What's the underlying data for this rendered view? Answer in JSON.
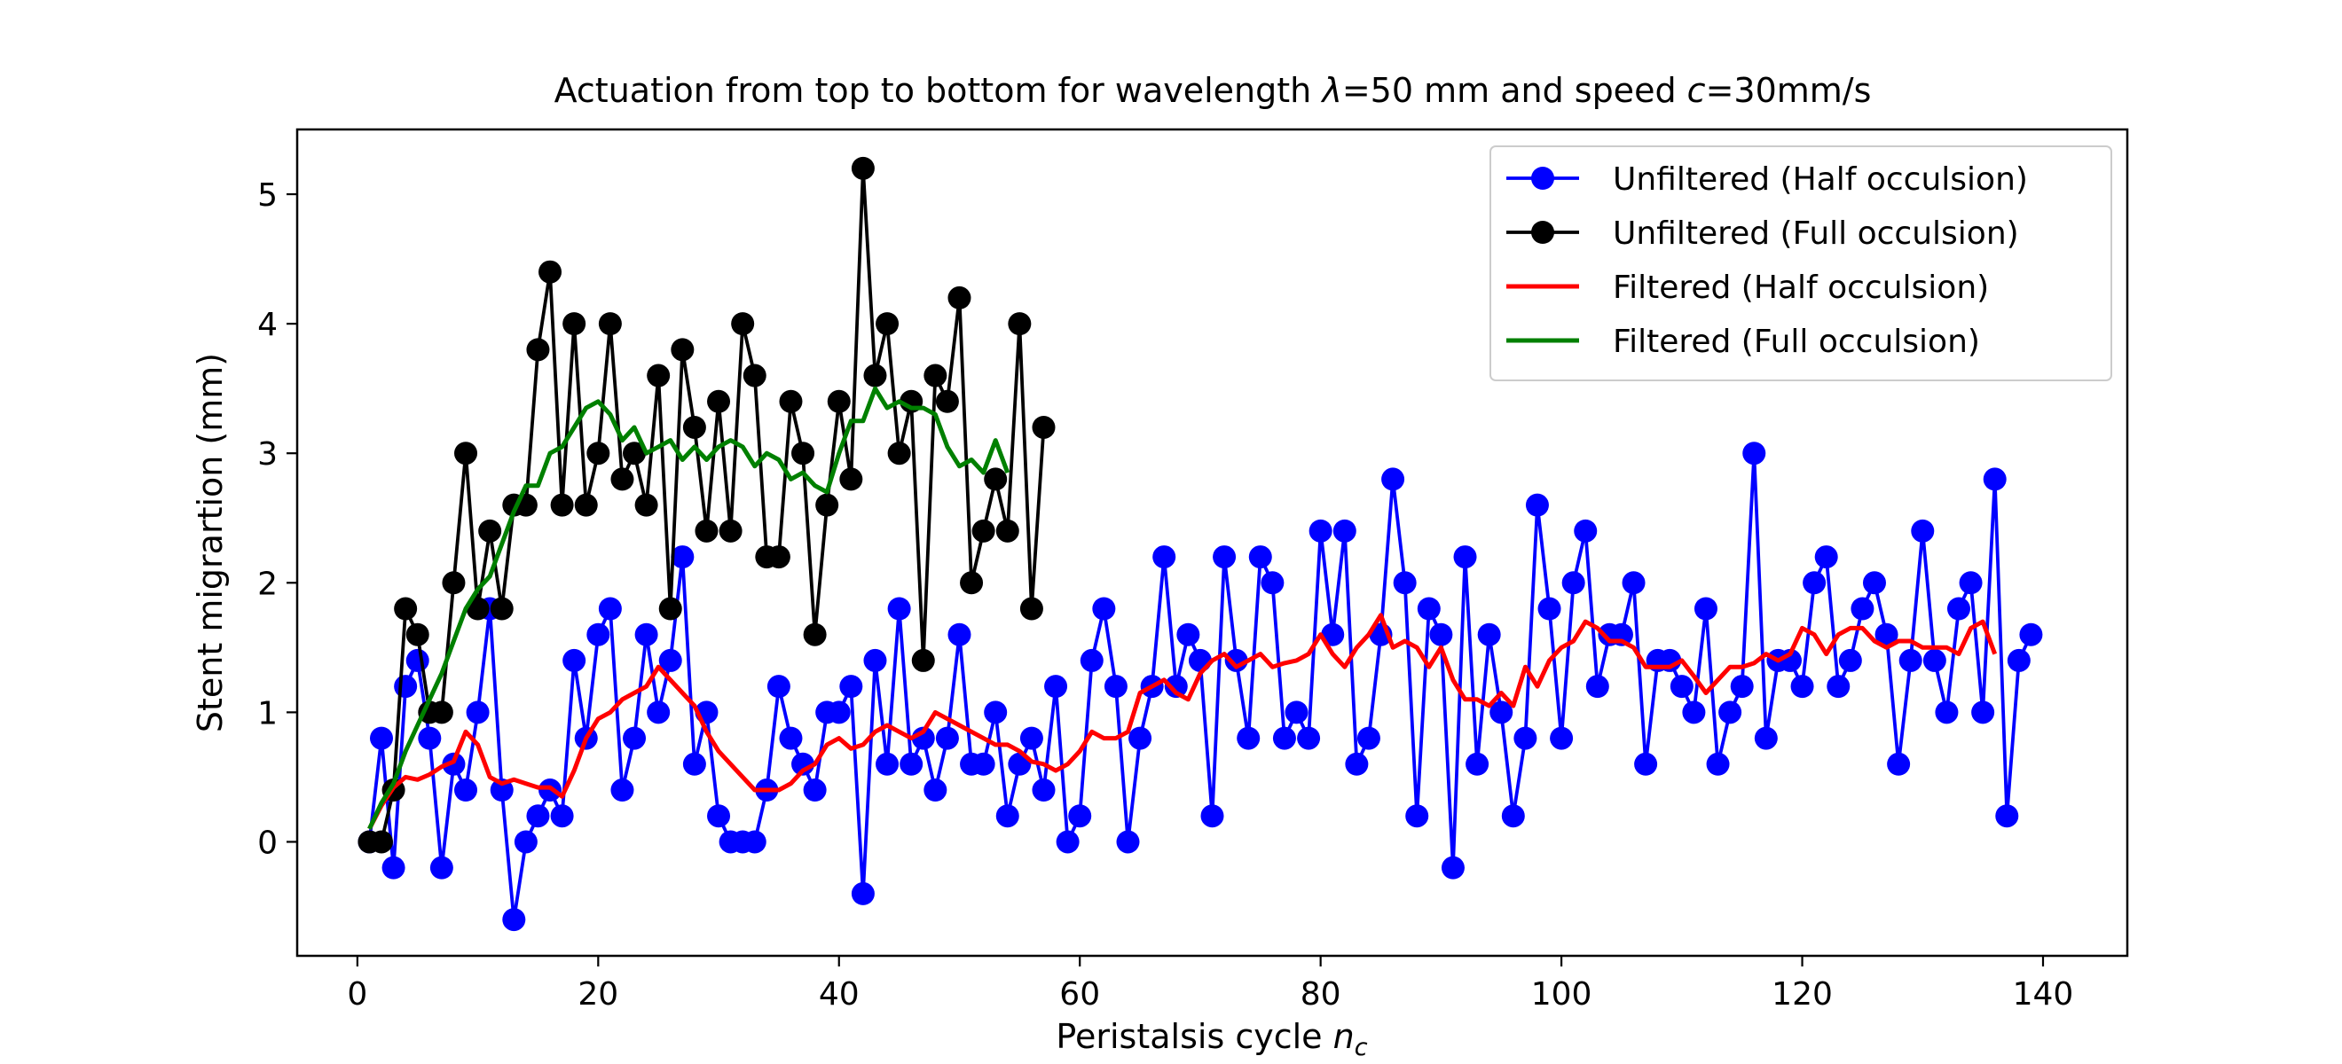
{
  "chart_data": {
    "type": "line",
    "title": "Actuation from top to bottom for wavelength λ=50 mm and speed c=30mm/s",
    "xlabel": "Peristalsis cycle n_c",
    "ylabel": "Stent migrartion (mm)",
    "xlim": [
      -5,
      147
    ],
    "ylim": [
      -0.88,
      5.5
    ],
    "xticks": [
      0,
      20,
      40,
      60,
      80,
      100,
      120,
      140
    ],
    "yticks": [
      0,
      1,
      2,
      3,
      4,
      5
    ],
    "grid": false,
    "legend_position": "top-right",
    "series": [
      {
        "name": "Unfiltered (Half occulsion)",
        "color": "#0000ff",
        "marker": "circle",
        "x": [
          1,
          2,
          3,
          4,
          5,
          6,
          7,
          8,
          9,
          10,
          11,
          12,
          13,
          14,
          15,
          16,
          17,
          18,
          19,
          20,
          21,
          22,
          23,
          24,
          25,
          26,
          27,
          28,
          29,
          30,
          31,
          32,
          33,
          34,
          35,
          36,
          37,
          38,
          39,
          40,
          41,
          42,
          43,
          44,
          45,
          46,
          47,
          48,
          49,
          50,
          51,
          52,
          53,
          54,
          55,
          56,
          57,
          58,
          59,
          60,
          61,
          62,
          63,
          64,
          65,
          66,
          67,
          68,
          69,
          70,
          71,
          72,
          73,
          74,
          75,
          76,
          77,
          78,
          79,
          80,
          81,
          82,
          83,
          84,
          85,
          86,
          87,
          88,
          89,
          90,
          91,
          92,
          93,
          94,
          95,
          96,
          97,
          98,
          99,
          100,
          101,
          102,
          103,
          104,
          105,
          106,
          107,
          108,
          109,
          110,
          111,
          112,
          113,
          114,
          115,
          116,
          117,
          118,
          119,
          120,
          121,
          122,
          123,
          124,
          125,
          126,
          127,
          128,
          129,
          130,
          131,
          132,
          133,
          134,
          135,
          136,
          137,
          138,
          139
        ],
        "y": [
          0.0,
          0.8,
          -0.2,
          1.2,
          1.4,
          0.8,
          -0.2,
          0.6,
          0.4,
          1.0,
          1.8,
          0.4,
          -0.6,
          0.0,
          0.2,
          0.4,
          0.2,
          1.4,
          0.8,
          1.6,
          1.8,
          0.4,
          0.8,
          1.6,
          1.0,
          1.4,
          2.2,
          0.6,
          1.0,
          0.2,
          0.0,
          0.0,
          0.0,
          0.4,
          1.2,
          0.8,
          0.6,
          0.4,
          1.0,
          1.0,
          1.2,
          -0.4,
          1.4,
          0.6,
          1.8,
          0.6,
          0.8,
          0.4,
          0.8,
          1.6,
          0.6,
          0.6,
          1.0,
          0.2,
          0.6,
          0.8,
          0.4,
          1.2,
          0.0,
          0.2,
          1.4,
          1.8,
          1.2,
          0.0,
          0.8,
          1.2,
          2.2,
          1.2,
          1.6,
          1.4,
          0.2,
          2.2,
          1.4,
          0.8,
          2.2,
          2.0,
          0.8,
          1.0,
          0.8,
          2.4,
          1.6,
          2.4,
          0.6,
          0.8,
          1.6,
          2.8,
          2.0,
          0.2,
          1.8,
          1.6,
          -0.2,
          2.2,
          0.6,
          1.6,
          1.0,
          0.2,
          0.8,
          2.6,
          1.8,
          0.8,
          2.0,
          2.4,
          1.2,
          1.6,
          1.6,
          2.0,
          0.6,
          1.4,
          1.4,
          1.2,
          1.0,
          1.8,
          0.6,
          1.0,
          1.2,
          3.0,
          0.8,
          1.4,
          1.4,
          1.2,
          2.0,
          2.2,
          1.2,
          1.4,
          1.8,
          2.0,
          1.6,
          0.6,
          1.4,
          2.4,
          1.4,
          1.0,
          1.8,
          2.0,
          1.0,
          2.8,
          0.2,
          1.4,
          1.6
        ]
      },
      {
        "name": "Unfiltered (Full occulsion)",
        "color": "#000000",
        "marker": "circle",
        "x": [
          1,
          2,
          3,
          4,
          5,
          6,
          7,
          8,
          9,
          10,
          11,
          12,
          13,
          14,
          15,
          16,
          17,
          18,
          19,
          20,
          21,
          22,
          23,
          24,
          25,
          26,
          27,
          28,
          29,
          30,
          31,
          32,
          33,
          34,
          35,
          36,
          37,
          38,
          39,
          40,
          41,
          42,
          43,
          44,
          45,
          46,
          47,
          48,
          49,
          50,
          51,
          52,
          53,
          54,
          55,
          56,
          57
        ],
        "y": [
          0.0,
          0.0,
          0.4,
          1.8,
          1.6,
          1.0,
          1.0,
          2.0,
          3.0,
          1.8,
          2.4,
          1.8,
          2.6,
          2.6,
          3.8,
          4.4,
          2.6,
          4.0,
          2.6,
          3.0,
          4.0,
          2.8,
          3.0,
          2.6,
          3.6,
          1.8,
          3.8,
          3.2,
          2.4,
          3.4,
          2.4,
          4.0,
          3.6,
          2.2,
          2.2,
          3.4,
          3.0,
          1.6,
          2.6,
          3.4,
          2.8,
          5.2,
          3.6,
          4.0,
          3.0,
          3.4,
          1.4,
          3.6,
          3.4,
          4.2,
          2.0,
          2.4,
          2.8,
          2.4,
          4.0,
          1.8,
          3.2
        ]
      },
      {
        "name": "Filtered (Half occulsion)",
        "color": "#ff0000",
        "marker": "none",
        "x": [
          1,
          2,
          3,
          4,
          5,
          6,
          7,
          8,
          9,
          10,
          11,
          12,
          13,
          14,
          15,
          16,
          17,
          18,
          19,
          20,
          21,
          22,
          23,
          24,
          25,
          26,
          27,
          28,
          29,
          30,
          31,
          32,
          33,
          34,
          35,
          36,
          37,
          38,
          39,
          40,
          41,
          42,
          43,
          44,
          45,
          46,
          47,
          48,
          49,
          50,
          51,
          52,
          53,
          54,
          55,
          56,
          57,
          58,
          59,
          60,
          61,
          62,
          63,
          64,
          65,
          66,
          67,
          68,
          69,
          70,
          71,
          72,
          73,
          74,
          75,
          76,
          77,
          78,
          79,
          80,
          81,
          82,
          83,
          84,
          85,
          86,
          87,
          88,
          89,
          90,
          91,
          92,
          93,
          94,
          95,
          96,
          97,
          98,
          99,
          100,
          101,
          102,
          103,
          104,
          105,
          106,
          107,
          108,
          109,
          110,
          111,
          112,
          113,
          114,
          115,
          116,
          117,
          118,
          119,
          120,
          121,
          122,
          123,
          124,
          125,
          126,
          127,
          128,
          129,
          130,
          131,
          132,
          133,
          134,
          135,
          136
        ],
        "y": [
          0.1,
          0.28,
          0.42,
          0.5,
          0.48,
          0.52,
          0.58,
          0.62,
          0.85,
          0.75,
          0.5,
          0.45,
          0.48,
          0.45,
          0.42,
          0.42,
          0.35,
          0.55,
          0.8,
          0.95,
          1.0,
          1.1,
          1.15,
          1.2,
          1.35,
          1.25,
          1.15,
          1.05,
          0.85,
          0.7,
          0.6,
          0.5,
          0.4,
          0.4,
          0.4,
          0.45,
          0.55,
          0.6,
          0.75,
          0.8,
          0.72,
          0.75,
          0.85,
          0.9,
          0.85,
          0.8,
          0.85,
          1.0,
          0.95,
          0.9,
          0.85,
          0.8,
          0.75,
          0.75,
          0.7,
          0.62,
          0.6,
          0.55,
          0.6,
          0.7,
          0.85,
          0.8,
          0.8,
          0.85,
          1.15,
          1.2,
          1.25,
          1.15,
          1.1,
          1.3,
          1.4,
          1.45,
          1.35,
          1.4,
          1.45,
          1.35,
          1.38,
          1.4,
          1.45,
          1.6,
          1.45,
          1.35,
          1.5,
          1.6,
          1.75,
          1.5,
          1.55,
          1.5,
          1.35,
          1.5,
          1.25,
          1.1,
          1.1,
          1.05,
          1.15,
          1.05,
          1.35,
          1.2,
          1.4,
          1.5,
          1.55,
          1.7,
          1.65,
          1.55,
          1.55,
          1.5,
          1.35,
          1.35,
          1.35,
          1.4,
          1.28,
          1.15,
          1.25,
          1.35,
          1.35,
          1.38,
          1.45,
          1.4,
          1.45,
          1.65,
          1.6,
          1.45,
          1.6,
          1.65,
          1.65,
          1.55,
          1.5,
          1.55,
          1.55,
          1.5,
          1.5,
          1.5,
          1.45,
          1.65,
          1.7,
          1.45
        ]
      },
      {
        "name": "Filtered (Full occulsion)",
        "color": "#008000",
        "marker": "none",
        "x": [
          1,
          2,
          3,
          4,
          5,
          6,
          7,
          8,
          9,
          10,
          11,
          12,
          13,
          14,
          15,
          16,
          17,
          18,
          19,
          20,
          21,
          22,
          23,
          24,
          25,
          26,
          27,
          28,
          29,
          30,
          31,
          32,
          33,
          34,
          35,
          36,
          37,
          38,
          39,
          40,
          41,
          42,
          43,
          44,
          45,
          46,
          47,
          48,
          49,
          50,
          51,
          52,
          53,
          54
        ],
        "y": [
          0.1,
          0.3,
          0.45,
          0.7,
          0.9,
          1.1,
          1.3,
          1.55,
          1.8,
          1.95,
          2.05,
          2.3,
          2.55,
          2.75,
          2.75,
          3.0,
          3.05,
          3.2,
          3.35,
          3.4,
          3.3,
          3.1,
          3.2,
          3.0,
          3.05,
          3.1,
          2.95,
          3.05,
          2.95,
          3.05,
          3.1,
          3.05,
          2.9,
          3.0,
          2.95,
          2.8,
          2.85,
          2.75,
          2.7,
          3.0,
          3.25,
          3.25,
          3.5,
          3.35,
          3.4,
          3.35,
          3.35,
          3.3,
          3.05,
          2.9,
          2.95,
          2.85,
          3.1,
          2.85
        ]
      }
    ]
  }
}
